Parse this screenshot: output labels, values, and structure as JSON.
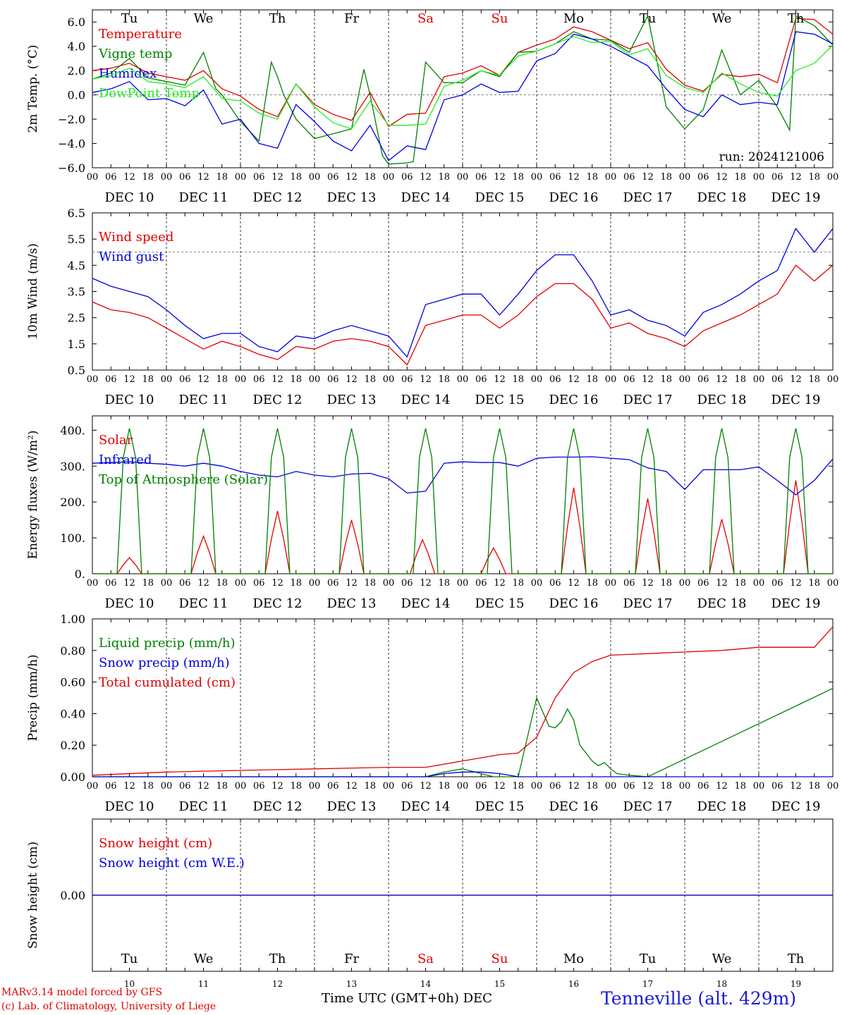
{
  "chart_data": {
    "type": "line",
    "run_label": "run: 2024121006",
    "station": "Tenneville (alt. 429m)",
    "credit_lines": [
      "MARv3.14 model forced by GFS",
      "(c) Lab. of Climatology, University of Liege"
    ],
    "x_axis_title": "Time UTC (GMT+0h) DEC",
    "hour_ticks": [
      "00",
      "06",
      "12",
      "18"
    ],
    "days": [
      {
        "weekday": "Tu",
        "date": "DEC 10",
        "num": "10",
        "weekend": false
      },
      {
        "weekday": "We",
        "date": "DEC 11",
        "num": "11",
        "weekend": false
      },
      {
        "weekday": "Th",
        "date": "DEC 12",
        "num": "12",
        "weekend": false
      },
      {
        "weekday": "Fr",
        "date": "DEC 13",
        "num": "13",
        "weekend": false
      },
      {
        "weekday": "Sa",
        "date": "DEC 14",
        "num": "14",
        "weekend": true
      },
      {
        "weekday": "Su",
        "date": "DEC 15",
        "num": "15",
        "weekend": true
      },
      {
        "weekday": "Mo",
        "date": "DEC 16",
        "num": "16",
        "weekend": false
      },
      {
        "weekday": "Tu",
        "date": "DEC 17",
        "num": "17",
        "weekend": false
      },
      {
        "weekday": "We",
        "date": "DEC 18",
        "num": "18",
        "weekend": false
      },
      {
        "weekday": "Th",
        "date": "DEC 19",
        "num": "19",
        "weekend": false
      }
    ],
    "x_range_hours": [
      0,
      240
    ],
    "colors": {
      "red": "#e00000",
      "green": "#008000",
      "blue": "#0000dd",
      "lightgreen": "#22ee22",
      "weekend": "#e00000",
      "text": "#000000"
    },
    "panels": [
      {
        "id": "temperature",
        "ylabel": "2m Temp. (°C)",
        "ylim": [
          -6,
          7
        ],
        "yticks": [
          -6,
          -4,
          -2,
          0,
          2,
          4,
          6
        ],
        "ytick_labels": [
          "−6.0",
          "−4.0",
          "−2.0",
          "0.0",
          "2.0",
          "4.0",
          "6.0"
        ],
        "ref_line": 0,
        "show_weekdays": true,
        "show_run": true,
        "series": [
          {
            "name": "Temperature",
            "color": "red",
            "x": [
              0,
              6,
              12,
              18,
              24,
              30,
              36,
              42,
              48,
              54,
              60,
              66,
              72,
              78,
              84,
              90,
              96,
              102,
              108,
              114,
              120,
              126,
              132,
              138,
              144,
              150,
              156,
              162,
              168,
              174,
              180,
              186,
              192,
              198,
              204,
              210,
              216,
              222,
              228,
              234,
              240
            ],
            "y": [
              2.0,
              2.2,
              2.6,
              1.8,
              1.5,
              1.2,
              2.0,
              0.5,
              -0.1,
              -1.2,
              -1.8,
              0.9,
              -0.8,
              -1.6,
              -2.1,
              0.2,
              -2.6,
              -1.6,
              -1.5,
              1.5,
              1.8,
              2.4,
              1.6,
              3.5,
              4.1,
              4.6,
              5.6,
              5.2,
              4.5,
              3.8,
              4.3,
              2.1,
              0.8,
              0.3,
              1.7,
              1.5,
              1.7,
              1.0,
              6.3,
              6.2,
              5.0
            ]
          },
          {
            "name": "Vigne temp",
            "color": "green",
            "x": [
              0,
              6,
              12,
              18,
              24,
              30,
              36,
              40,
              42,
              48,
              54,
              58,
              60,
              62,
              66,
              72,
              78,
              84,
              88,
              90,
              94,
              96,
              102,
              104,
              108,
              114,
              120,
              126,
              132,
              138,
              144,
              150,
              156,
              162,
              168,
              174,
              180,
              186,
              192,
              198,
              204,
              210,
              216,
              222,
              226,
              228,
              234,
              240
            ],
            "y": [
              1.3,
              1.8,
              3.0,
              1.4,
              1.1,
              0.8,
              3.5,
              0.5,
              0.0,
              -2.2,
              -3.8,
              2.7,
              1.5,
              0.0,
              -2.0,
              -3.6,
              -3.2,
              -2.8,
              2.1,
              0.0,
              -5.0,
              -5.7,
              -5.6,
              -5.5,
              2.7,
              1.0,
              1.0,
              2.0,
              1.5,
              3.5,
              3.6,
              4.2,
              5.2,
              4.6,
              4.5,
              3.5,
              6.5,
              -1.0,
              -2.8,
              -1.2,
              3.7,
              0.0,
              1.2,
              -1.0,
              -2.9,
              6.5,
              5.7,
              4.1
            ]
          },
          {
            "name": "Humidex",
            "color": "blue",
            "x": [
              0,
              6,
              12,
              18,
              24,
              30,
              36,
              42,
              48,
              54,
              60,
              66,
              72,
              78,
              84,
              90,
              96,
              102,
              108,
              114,
              120,
              126,
              132,
              138,
              144,
              150,
              156,
              162,
              168,
              174,
              180,
              186,
              192,
              198,
              204,
              210,
              216,
              222,
              228,
              234,
              240
            ],
            "y": [
              0.2,
              0.5,
              1.1,
              -0.4,
              -0.3,
              -0.9,
              0.4,
              -2.4,
              -2.0,
              -4.0,
              -4.4,
              -0.8,
              -2.2,
              -3.8,
              -4.6,
              -2.5,
              -5.4,
              -4.2,
              -4.5,
              -0.4,
              0.0,
              0.9,
              0.2,
              0.3,
              2.8,
              3.4,
              5.0,
              4.6,
              4.0,
              3.2,
              2.4,
              0.5,
              -1.2,
              -1.8,
              0.0,
              -0.8,
              -0.6,
              -0.8,
              5.2,
              5.0,
              4.2
            ]
          },
          {
            "name": "DewPoint Temp",
            "color": "lightgreen",
            "x": [
              0,
              6,
              12,
              18,
              24,
              30,
              36,
              42,
              48,
              54,
              60,
              66,
              72,
              78,
              84,
              90,
              96,
              102,
              108,
              114,
              120,
              126,
              132,
              138,
              144,
              150,
              156,
              162,
              168,
              174,
              180,
              186,
              192,
              198,
              204,
              210,
              216,
              222,
              228,
              234,
              240
            ],
            "y": [
              1.3,
              1.6,
              2.2,
              1.1,
              0.9,
              0.6,
              1.5,
              -0.3,
              -0.5,
              -1.5,
              -2.0,
              0.9,
              -1.0,
              -2.3,
              -2.8,
              -0.5,
              -2.5,
              -2.5,
              -2.4,
              0.7,
              1.2,
              2.0,
              1.6,
              3.2,
              3.6,
              4.2,
              4.8,
              4.3,
              4.4,
              3.3,
              3.8,
              1.6,
              0.6,
              0.2,
              1.8,
              0.9,
              0.2,
              -0.1,
              2.0,
              2.6,
              4.1
            ]
          }
        ]
      },
      {
        "id": "wind",
        "ylabel": "10m Wind (m/s)",
        "ylim": [
          0.5,
          6.5
        ],
        "yticks": [
          0.5,
          1.5,
          2.5,
          3.5,
          4.5,
          5.5,
          6.5
        ],
        "ytick_labels": [
          "0.5",
          "1.5",
          "2.5",
          "3.5",
          "4.5",
          "5.5",
          "6.5"
        ],
        "ref_line": 5,
        "series": [
          {
            "name": "Wind speed",
            "color": "red",
            "x": [
              0,
              6,
              12,
              18,
              24,
              30,
              36,
              42,
              48,
              54,
              60,
              66,
              72,
              78,
              84,
              90,
              96,
              102,
              108,
              114,
              120,
              126,
              132,
              138,
              144,
              150,
              156,
              162,
              168,
              174,
              180,
              186,
              192,
              198,
              204,
              210,
              216,
              222,
              228,
              234,
              240
            ],
            "y": [
              3.1,
              2.8,
              2.7,
              2.5,
              2.1,
              1.7,
              1.3,
              1.6,
              1.4,
              1.1,
              0.9,
              1.4,
              1.3,
              1.6,
              1.7,
              1.6,
              1.4,
              0.7,
              2.2,
              2.4,
              2.6,
              2.6,
              2.1,
              2.6,
              3.3,
              3.8,
              3.8,
              3.2,
              2.1,
              2.3,
              1.9,
              1.7,
              1.4,
              2.0,
              2.3,
              2.6,
              3.0,
              3.4,
              4.5,
              3.9,
              4.5
            ]
          },
          {
            "name": "Wind gust",
            "color": "blue",
            "x": [
              0,
              6,
              12,
              18,
              24,
              30,
              36,
              42,
              48,
              54,
              60,
              66,
              72,
              78,
              84,
              90,
              96,
              102,
              108,
              114,
              120,
              126,
              132,
              138,
              144,
              150,
              156,
              162,
              168,
              174,
              180,
              186,
              192,
              198,
              204,
              210,
              216,
              222,
              228,
              234,
              240
            ],
            "y": [
              4.0,
              3.7,
              3.5,
              3.3,
              2.8,
              2.2,
              1.7,
              1.9,
              1.9,
              1.4,
              1.2,
              1.8,
              1.7,
              2.0,
              2.2,
              2.0,
              1.8,
              1.0,
              3.0,
              3.2,
              3.4,
              3.4,
              2.6,
              3.4,
              4.3,
              4.9,
              4.9,
              3.9,
              2.6,
              2.8,
              2.4,
              2.2,
              1.8,
              2.7,
              3.0,
              3.4,
              3.9,
              4.3,
              5.9,
              5.0,
              5.9
            ]
          }
        ]
      },
      {
        "id": "energy",
        "ylabel": "Energy fluxes (W/m²)",
        "ylim": [
          0,
          440
        ],
        "yticks": [
          0,
          100,
          200,
          300,
          400
        ],
        "ytick_labels": [
          "0.",
          "100.",
          "200.",
          "300.",
          "400."
        ],
        "series": [
          {
            "name": "Solar",
            "color": "red",
            "kind": "solar",
            "peaks": [
              45,
              105,
              175,
              150,
              95,
              72,
              240,
              210,
              152,
              260
            ],
            "phase": [
              0,
              0,
              0,
              0,
              -1,
              -2,
              0,
              0,
              0,
              0
            ]
          },
          {
            "name": "Infrared",
            "color": "blue",
            "x": [
              0,
              6,
              12,
              18,
              24,
              30,
              36,
              42,
              48,
              54,
              60,
              66,
              72,
              78,
              84,
              90,
              96,
              102,
              108,
              114,
              120,
              126,
              132,
              138,
              144,
              150,
              156,
              162,
              168,
              174,
              180,
              186,
              192,
              198,
              204,
              210,
              216,
              222,
              228,
              234,
              240
            ],
            "y": [
              308,
              310,
              312,
              308,
              305,
              300,
              308,
              300,
              285,
              275,
              270,
              285,
              275,
              270,
              278,
              280,
              265,
              225,
              230,
              308,
              312,
              310,
              310,
              300,
              322,
              325,
              325,
              326,
              322,
              318,
              295,
              285,
              235,
              290,
              290,
              290,
              298,
              260,
              220,
              260,
              320
            ]
          },
          {
            "name": "Top of Atmosphere (Solar)",
            "color": "green",
            "kind": "toa",
            "peak": 405
          }
        ]
      },
      {
        "id": "precip",
        "ylabel": "Precip (mm/h)",
        "ylim": [
          0,
          1.0
        ],
        "yticks": [
          0,
          0.2,
          0.4,
          0.6,
          0.8,
          1.0
        ],
        "ytick_labels": [
          "0.00",
          "0.20",
          "0.40",
          "0.60",
          "0.80",
          "1.00"
        ],
        "series": [
          {
            "name": "Liquid precip (mm/h)",
            "color": "green",
            "x": [
              0,
              108,
              114,
              120,
              126,
              130,
              138,
              144,
              148,
              150,
              152,
              154,
              156,
              158,
              160,
              162,
              164,
              166,
              168,
              170,
              174,
              180,
              240
            ],
            "y": [
              0.0,
              0.0,
              0.03,
              0.05,
              0.02,
              0.0,
              0.0,
              0.5,
              0.32,
              0.31,
              0.35,
              0.43,
              0.36,
              0.2,
              0.15,
              0.1,
              0.07,
              0.09,
              0.05,
              0.02,
              0.01,
              0.0,
              0.56
            ]
          },
          {
            "name": "Snow precip (mm/h)",
            "color": "blue",
            "x": [
              0,
              108,
              114,
              120,
              126,
              132,
              138,
              144,
              240
            ],
            "y": [
              0.0,
              0.0,
              0.02,
              0.03,
              0.03,
              0.02,
              0.0,
              0.0,
              0.0
            ]
          },
          {
            "name": "Total cumulated (cm)",
            "color": "red",
            "x": [
              0,
              24,
              48,
              72,
              96,
              108,
              120,
              132,
              138,
              144,
              150,
              156,
              162,
              168,
              180,
              192,
              204,
              216,
              228,
              234,
              240
            ],
            "y": [
              0.01,
              0.03,
              0.04,
              0.05,
              0.06,
              0.06,
              0.1,
              0.14,
              0.15,
              0.25,
              0.5,
              0.66,
              0.73,
              0.77,
              0.78,
              0.79,
              0.8,
              0.82,
              0.82,
              0.82,
              0.95
            ]
          }
        ]
      },
      {
        "id": "snow",
        "ylabel": "Snow height (cm)",
        "ylim": [
          -1,
          1
        ],
        "yticks": [
          0
        ],
        "ytick_labels": [
          "0.00"
        ],
        "bottom_weekdays": true,
        "series": [
          {
            "name": "Snow height (cm)",
            "color": "red",
            "x": [
              0,
              240
            ],
            "y": [
              0,
              0
            ]
          },
          {
            "name": "Snow height (cm W.E.)",
            "color": "blue",
            "x": [
              0,
              240
            ],
            "y": [
              0,
              0
            ]
          }
        ]
      }
    ]
  }
}
